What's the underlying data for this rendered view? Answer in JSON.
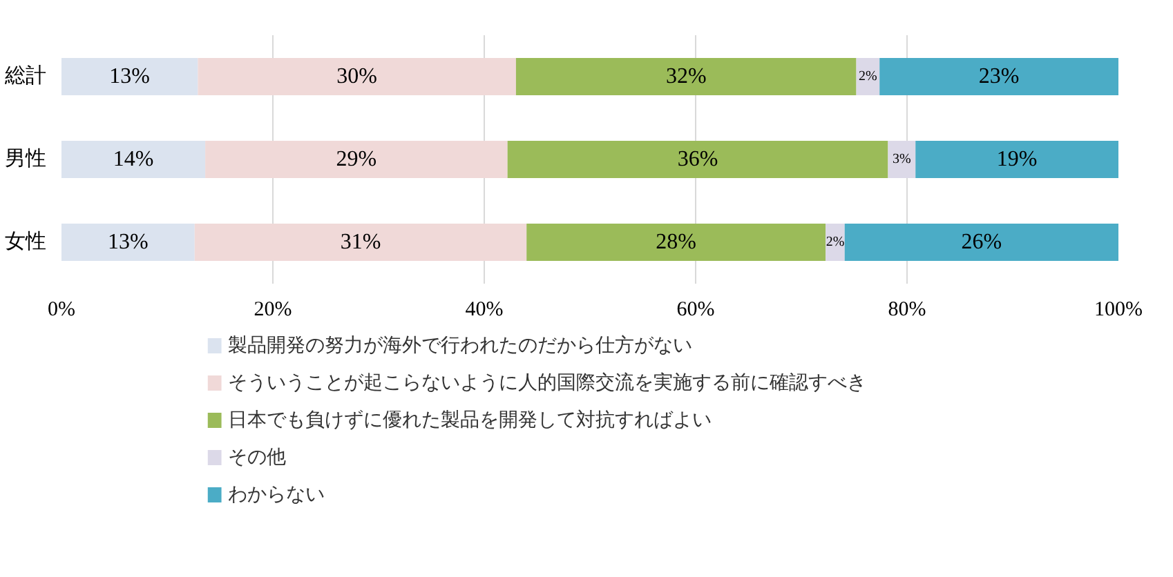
{
  "chart_data": {
    "type": "bar",
    "orientation": "horizontal",
    "stacked": true,
    "categories": [
      "総計",
      "男性",
      "女性"
    ],
    "series": [
      {
        "name": "製品開発の努力が海外で行われたのだから仕方がない",
        "color": "#dbe3ef",
        "values": [
          12.9,
          13.6,
          12.6
        ],
        "value_labels": [
          "13%",
          "14%",
          "13%"
        ]
      },
      {
        "name": "そういうことが起こらないように人的国際交流を実施する前に確認すべき",
        "color": "#f0d9d8",
        "values": [
          30.1,
          28.6,
          31.4
        ],
        "value_labels": [
          "30%",
          "29%",
          "31%"
        ]
      },
      {
        "name": "日本でも負けずに優れた製品を開発して対抗すればよい",
        "color": "#9bbb59",
        "values": [
          32.2,
          36.0,
          28.3
        ],
        "value_labels": [
          "32%",
          "36%",
          "28%"
        ]
      },
      {
        "name": "その他",
        "color": "#dcd9e8",
        "values": [
          2.2,
          2.6,
          1.8
        ],
        "value_labels": [
          "2%",
          "3%",
          "2%"
        ]
      },
      {
        "name": "わからない",
        "color": "#4bacc6",
        "values": [
          22.6,
          19.2,
          25.9
        ],
        "value_labels": [
          "23%",
          "19%",
          "26%"
        ]
      }
    ],
    "xlim": [
      0,
      100
    ],
    "xticks": [
      {
        "value": 0,
        "label": "0%"
      },
      {
        "value": 20,
        "label": "20%"
      },
      {
        "value": 40,
        "label": "40%"
      },
      {
        "value": 60,
        "label": "60%"
      },
      {
        "value": 80,
        "label": "80%"
      },
      {
        "value": 100,
        "label": "100%"
      }
    ],
    "grid": "x",
    "legend": "bottom"
  }
}
